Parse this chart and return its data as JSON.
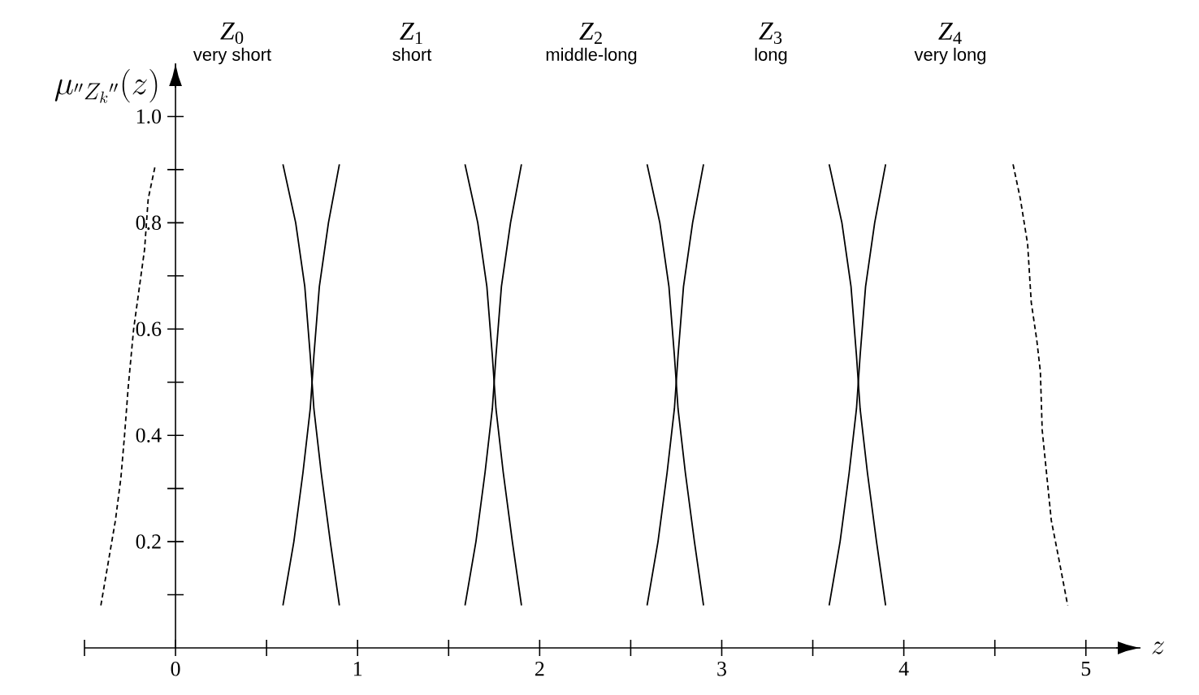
{
  "chart_data": {
    "type": "line",
    "ylabel": "\\mu_{{}''Z_k{}''}(z)",
    "xlabel": "z",
    "xlim": [
      -0.5,
      5.3
    ],
    "ylim": [
      0,
      1.1
    ],
    "xticks": [
      {
        "value": -0.5,
        "label": null
      },
      0,
      {
        "value": 0.5,
        "label": null
      },
      1,
      {
        "value": 1.5,
        "label": null
      },
      2,
      {
        "value": 2.5,
        "label": null
      },
      3,
      {
        "value": 3.5,
        "label": null
      },
      4,
      {
        "value": 4.5,
        "label": null
      },
      5
    ],
    "yticks": [
      {
        "value": 0.1,
        "label": null
      },
      0.2,
      {
        "value": 0.3,
        "label": null
      },
      0.4,
      {
        "value": 0.5,
        "label": null
      },
      0.6,
      {
        "value": 0.7,
        "label": null
      },
      0.8,
      {
        "value": 0.9,
        "label": null
      },
      {
        "value": 1.0,
        "label": "1.0"
      }
    ],
    "grid": false,
    "marker": "none",
    "series": [
      {
        "color": "#000000",
        "line_style": "dashed",
        "x": [
          -0.41,
          -0.37,
          -0.33,
          -0.3,
          -0.28,
          -0.26,
          -0.23,
          -0.17,
          -0.15,
          -0.11
        ],
        "values": [
          0.08,
          0.16,
          0.24,
          0.32,
          0.4,
          0.49,
          0.6,
          0.75,
          0.845,
          0.91
        ]
      },
      {
        "color": "#000000",
        "line_style": "solid",
        "x": [
          0.59,
          0.66,
          0.71,
          0.74,
          0.75,
          0.76,
          0.8,
          0.85,
          0.9
        ],
        "values": [
          0.91,
          0.8,
          0.68,
          0.55,
          0.5,
          0.45,
          0.33,
          0.2,
          0.08
        ]
      },
      {
        "color": "#000000",
        "line_style": "solid",
        "x": [
          0.59,
          0.65,
          0.7,
          0.74,
          0.75,
          0.76,
          0.79,
          0.84,
          0.9
        ],
        "values": [
          0.08,
          0.2,
          0.33,
          0.45,
          0.5,
          0.55,
          0.68,
          0.8,
          0.91
        ]
      },
      {
        "color": "#000000",
        "line_style": "solid",
        "x": [
          1.59,
          1.66,
          1.71,
          1.74,
          1.75,
          1.76,
          1.8,
          1.85,
          1.9
        ],
        "values": [
          0.91,
          0.8,
          0.68,
          0.55,
          0.5,
          0.45,
          0.33,
          0.2,
          0.08
        ]
      },
      {
        "color": "#000000",
        "line_style": "solid",
        "x": [
          1.59,
          1.65,
          1.7,
          1.74,
          1.75,
          1.76,
          1.79,
          1.84,
          1.9
        ],
        "values": [
          0.08,
          0.2,
          0.33,
          0.45,
          0.5,
          0.55,
          0.68,
          0.8,
          0.91
        ]
      },
      {
        "color": "#000000",
        "line_style": "solid",
        "x": [
          2.59,
          2.66,
          2.71,
          2.74,
          2.75,
          2.76,
          2.8,
          2.85,
          2.9
        ],
        "values": [
          0.91,
          0.8,
          0.68,
          0.55,
          0.5,
          0.45,
          0.33,
          0.2,
          0.08
        ]
      },
      {
        "color": "#000000",
        "line_style": "solid",
        "x": [
          2.59,
          2.65,
          2.7,
          2.74,
          2.75,
          2.76,
          2.79,
          2.84,
          2.9
        ],
        "values": [
          0.08,
          0.2,
          0.33,
          0.45,
          0.5,
          0.55,
          0.68,
          0.8,
          0.91
        ]
      },
      {
        "color": "#000000",
        "line_style": "solid",
        "x": [
          3.59,
          3.66,
          3.71,
          3.74,
          3.75,
          3.76,
          3.8,
          3.85,
          3.9
        ],
        "values": [
          0.91,
          0.8,
          0.68,
          0.55,
          0.5,
          0.45,
          0.33,
          0.2,
          0.08
        ]
      },
      {
        "color": "#000000",
        "line_style": "solid",
        "x": [
          3.59,
          3.65,
          3.7,
          3.74,
          3.75,
          3.76,
          3.79,
          3.84,
          3.9
        ],
        "values": [
          0.08,
          0.2,
          0.33,
          0.45,
          0.5,
          0.55,
          0.68,
          0.8,
          0.91
        ]
      },
      {
        "color": "#000000",
        "line_style": "dashed",
        "x": [
          4.6,
          4.64,
          4.68,
          4.7,
          4.73,
          4.75,
          4.76,
          4.81,
          4.85,
          4.9
        ],
        "values": [
          0.91,
          0.845,
          0.76,
          0.65,
          0.58,
          0.52,
          0.41,
          0.24,
          0.17,
          0.08
        ]
      }
    ],
    "annotations": [
      "*Z*$_{0}$",
      "very short",
      "*Z*$_{1}$",
      "short",
      "*Z*$_{2}$",
      "middle-long",
      "*Z*$_{3}$",
      "long",
      "*Z*$_{4}$",
      "very long"
    ]
  }
}
